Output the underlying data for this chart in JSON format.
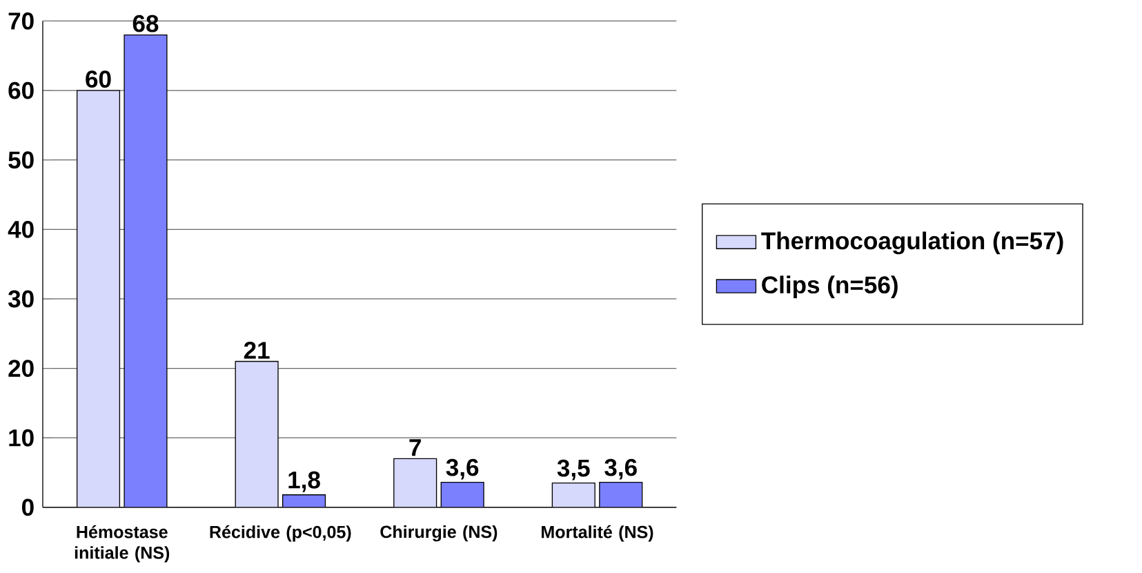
{
  "chart_data": {
    "type": "bar",
    "categories": [
      "Hémostase initiale (NS)",
      "Récidive (p<0,05)",
      "Chirurgie (NS)",
      "Mortalité (NS)"
    ],
    "series": [
      {
        "name": "Thermocoagulation (n=57)",
        "color": "#d6d8fc",
        "values": [
          60,
          21,
          7,
          3.5
        ],
        "value_labels": [
          "60",
          "21",
          "7",
          "3,5"
        ]
      },
      {
        "name": "Clips (n=56)",
        "color": "#7b80ff",
        "values": [
          68,
          1.8,
          3.6,
          3.6
        ],
        "value_labels": [
          "68",
          "1,8",
          "3,6",
          "3,6"
        ]
      }
    ],
    "ylim": [
      0,
      70
    ],
    "yticks": [
      0,
      10,
      20,
      30,
      40,
      50,
      60,
      70
    ],
    "grid": "y",
    "legend": "right"
  }
}
